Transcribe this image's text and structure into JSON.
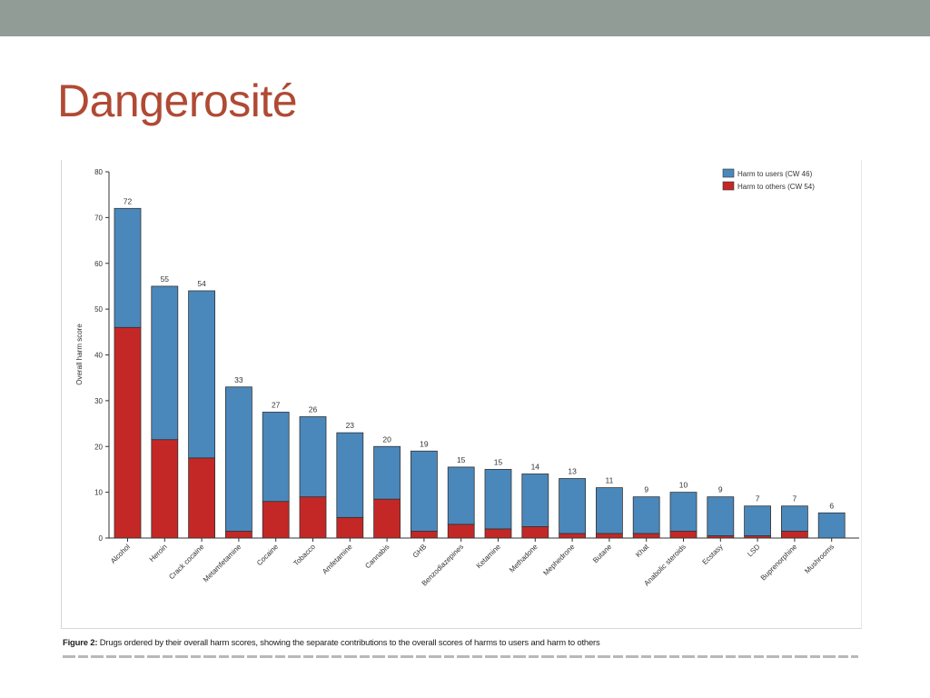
{
  "slide": {
    "title": "Dangerosité"
  },
  "caption": {
    "figure_label": "Figure 2:",
    "text": " Drugs ordered by their overall harm scores, showing the separate contributions to the overall scores of harms to users and harm to others"
  },
  "colors": {
    "top_bar": "#929c96",
    "title": "#b04a34",
    "users": "#4a88bc",
    "others": "#c42826"
  },
  "chart_data": {
    "type": "bar",
    "stacked": true,
    "title": "",
    "xlabel": "",
    "ylabel": "Overall harm score",
    "ylim": [
      0,
      80
    ],
    "yticks": [
      0,
      10,
      20,
      30,
      40,
      50,
      60,
      70,
      80
    ],
    "grid": false,
    "legend_position": "top-right",
    "categories": [
      "Alcohol",
      "Heroin",
      "Crack cocaine",
      "Metamfetamine",
      "Cocaine",
      "Tobacco",
      "Amfetamine",
      "Cannabis",
      "GHB",
      "Benzodiazepines",
      "Ketamine",
      "Methadone",
      "Mephedrone",
      "Butane",
      "Khat",
      "Anabolic steroids",
      "Ecstasy",
      "LSD",
      "Buprenorphine",
      "Mushrooms"
    ],
    "totals": [
      72,
      55,
      54,
      33,
      27,
      26,
      23,
      20,
      19,
      15,
      15,
      14,
      13,
      11,
      9,
      10,
      9,
      7,
      7,
      6
    ],
    "series": [
      {
        "name": "Harm to others (CW 54)",
        "values": [
          46,
          21.5,
          17.5,
          1.5,
          8,
          9,
          4.5,
          8.5,
          1.5,
          3,
          2,
          2.5,
          1,
          1,
          1,
          1.5,
          0.5,
          0.5,
          1.5,
          0
        ]
      },
      {
        "name": "Harm to users (CW 46)",
        "values": [
          26,
          33.5,
          36.5,
          31.5,
          19.5,
          17.5,
          18.5,
          11.5,
          17.5,
          12.5,
          13,
          11.5,
          12,
          10,
          8,
          8.5,
          8.5,
          6.5,
          5.5,
          5.5
        ]
      }
    ]
  }
}
